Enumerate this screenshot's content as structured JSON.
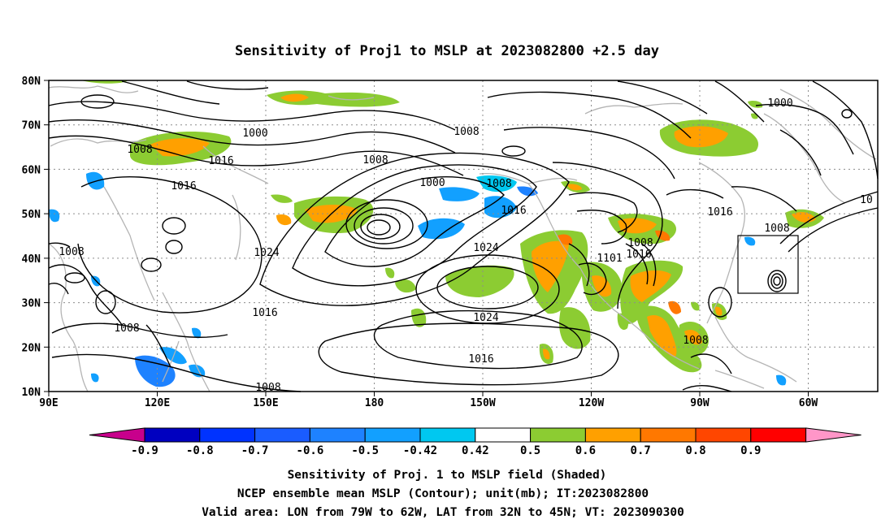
{
  "title": "Sensitivity of Proj1 to MSLP at 2023082800 +2.5 day",
  "map": {
    "lat_ticks": [
      "80N",
      "70N",
      "60N",
      "50N",
      "40N",
      "30N",
      "20N",
      "10N"
    ],
    "lon_ticks": [
      "90E",
      "120E",
      "150E",
      "180",
      "150W",
      "120W",
      "90W",
      "60W"
    ],
    "grid": "dotted",
    "contour_labels": [
      "1000",
      "1008",
      "1016",
      "1016",
      "1008",
      "1000",
      "1008",
      "1008",
      "1000",
      "1008",
      "1016",
      "1024",
      "1008",
      "1101",
      "1016",
      "1016",
      "1008",
      "10",
      "1008",
      "1024",
      "1016",
      "1024",
      "1016",
      "1008",
      "1008"
    ],
    "verification_box": {
      "lon": [
        "79W",
        "62W"
      ],
      "lat": [
        "32N",
        "45N"
      ]
    },
    "colors": {
      "coast": "#b4b4b4",
      "contour": "#000000"
    }
  },
  "colorbar": {
    "labels": [
      "-0.9",
      "-0.8",
      "-0.7",
      "-0.6",
      "-0.5",
      "-0.42",
      "0.42",
      "0.5",
      "0.6",
      "0.7",
      "0.8",
      "0.9"
    ],
    "colors": [
      "#c8008c",
      "#0000c0",
      "#0033ff",
      "#1a5cff",
      "#1e82ff",
      "#12a0ff",
      "#00c8f0",
      "#ffffff",
      "#8ccc32",
      "#ffa000",
      "#ff7800",
      "#ff4600",
      "#ff0000",
      "#ff96c8"
    ]
  },
  "caption": {
    "line1": "Sensitivity of Proj. 1 to MSLP field (Shaded)",
    "line2": "NCEP ensemble mean MSLP (Contour); unit(mb); IT:2023082800",
    "line3": "Valid area: LON from 79W to 62W, LAT from 32N to 45N; VT: 2023090300"
  }
}
